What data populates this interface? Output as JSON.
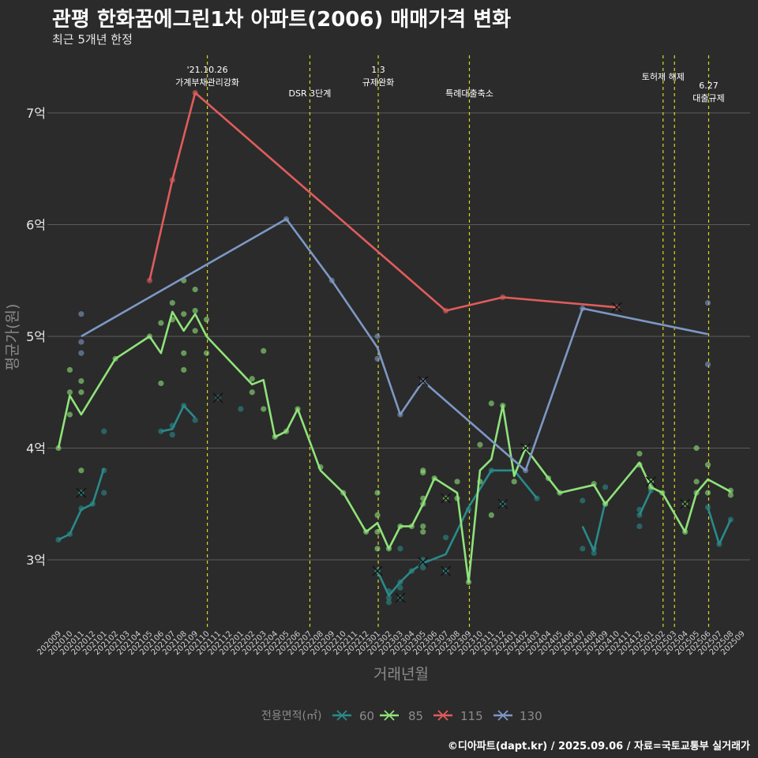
{
  "title": "관평 한화꿈에그린1차 아파트(2006) 매매가격 변화",
  "subtitle": "최근 5개년 한정",
  "caption": "©디아파트(dapt.kr) / 2025.09.06 / 자료=국토교통부 실거래가",
  "chart_data": {
    "type": "line",
    "xlabel": "거래년월",
    "ylabel": "평균가(원)",
    "x_range": [
      "202009",
      "202509"
    ],
    "ylim": [
      2.4,
      7.5
    ],
    "y_ticks": [
      {
        "value": 3,
        "label": "3억"
      },
      {
        "value": 4,
        "label": "4억"
      },
      {
        "value": 5,
        "label": "5억"
      },
      {
        "value": 6,
        "label": "6억"
      },
      {
        "value": 7,
        "label": "7억"
      }
    ],
    "x_ticks": [
      "202009",
      "202010",
      "202011",
      "202012",
      "202101",
      "202102",
      "202103",
      "202104",
      "202105",
      "202106",
      "202107",
      "202108",
      "202109",
      "202110",
      "202111",
      "202112",
      "202201",
      "202202",
      "202203",
      "202204",
      "202205",
      "202206",
      "202207",
      "202208",
      "202209",
      "202210",
      "202211",
      "202212",
      "202301",
      "202302",
      "202303",
      "202304",
      "202305",
      "202306",
      "202307",
      "202308",
      "202309",
      "202310",
      "202311",
      "202312",
      "202401",
      "202402",
      "202403",
      "202404",
      "202405",
      "202406",
      "202407",
      "202408",
      "202409",
      "202410",
      "202411",
      "202412",
      "202501",
      "202502",
      "202503",
      "202504",
      "202505",
      "202506",
      "202507",
      "202508",
      "202509"
    ],
    "grid": true,
    "legend": {
      "title": "전용면적(㎡)",
      "position": "bottom",
      "items": [
        {
          "label": "60",
          "color": "#2a8a8a"
        },
        {
          "label": "85",
          "color": "#8fe37a"
        },
        {
          "label": "115",
          "color": "#e05c5c"
        },
        {
          "label": "130",
          "color": "#7d98c4"
        }
      ]
    },
    "events": [
      {
        "date": "2021.10",
        "lines": [
          "'21.10.26",
          "가계부채관리강화"
        ],
        "level": 0
      },
      {
        "date": "2022.07",
        "lines": [
          "DSR 3단계"
        ],
        "level": 2
      },
      {
        "date": "2023.01",
        "lines": [
          "1.3",
          "규제완화"
        ],
        "level": 0
      },
      {
        "date": "2023.09",
        "lines": [
          "특례대출축소"
        ],
        "level": 2
      },
      {
        "date": "2025.02",
        "lines": [
          "토허제 해제"
        ],
        "level": 1
      },
      {
        "date": "2025.03",
        "lines": [],
        "level": 1
      },
      {
        "date": "2025.06",
        "lines": [
          "6.27",
          "대출규제"
        ],
        "level": 3
      }
    ],
    "series": [
      {
        "name": "60",
        "color": "#2a8a8a",
        "segments": [
          [
            [
              "2020.09",
              3.18
            ],
            [
              "2020.10",
              3.23
            ],
            [
              "2020.11",
              3.45
            ],
            [
              "2020.12",
              3.5
            ],
            [
              "2021.01",
              3.82
            ]
          ],
          [
            [
              "2021.06",
              4.15
            ],
            [
              "2021.07",
              4.17
            ],
            [
              "2021.08",
              4.38
            ],
            [
              "2021.09",
              4.27
            ]
          ],
          [
            [
              "2023.01",
              2.9
            ],
            [
              "2023.02",
              2.68
            ],
            [
              "2023.03",
              2.8
            ],
            [
              "2023.04",
              2.9
            ],
            [
              "2023.05",
              2.97
            ],
            [
              "2023.07",
              3.05
            ],
            [
              "2023.09",
              3.47
            ],
            [
              "2023.11",
              3.8
            ],
            [
              "2024.01",
              3.8
            ],
            [
              "2024.03",
              3.55
            ]
          ],
          [
            [
              "2024.07",
              3.3
            ],
            [
              "2024.08",
              3.08
            ],
            [
              "2024.09",
              3.52
            ]
          ],
          [
            [
              "2024.12",
              3.4
            ],
            [
              "2025.01",
              3.62
            ]
          ],
          [
            [
              "2025.06",
              3.47
            ],
            [
              "2025.07",
              3.14
            ],
            [
              "2025.08",
              3.36
            ]
          ]
        ],
        "points": [
          [
            "2020.09",
            3.18
          ],
          [
            "2020.10",
            3.23
          ],
          [
            "2020.11",
            3.46
          ],
          [
            "2020.11",
            3.6
          ],
          [
            "2020.12",
            3.5
          ],
          [
            "2021.01",
            3.6
          ],
          [
            "2021.01",
            3.8
          ],
          [
            "2021.01",
            4.15
          ],
          [
            "2021.06",
            4.15
          ],
          [
            "2021.07",
            4.12
          ],
          [
            "2021.07",
            4.2
          ],
          [
            "2021.08",
            4.38
          ],
          [
            "2021.09",
            4.25
          ],
          [
            "2022.01",
            4.35
          ],
          [
            "2023.01",
            2.9
          ],
          [
            "2023.02",
            2.62
          ],
          [
            "2023.02",
            2.66
          ],
          [
            "2023.02",
            2.72
          ],
          [
            "2023.03",
            2.75
          ],
          [
            "2023.03",
            2.8
          ],
          [
            "2023.03",
            3.1
          ],
          [
            "2023.04",
            2.9
          ],
          [
            "2023.05",
            2.93
          ],
          [
            "2023.05",
            3.0
          ],
          [
            "2023.07",
            3.2
          ],
          [
            "2023.07",
            2.9
          ],
          [
            "2023.09",
            3.45
          ],
          [
            "2023.11",
            3.8
          ],
          [
            "2023.12",
            3.5
          ],
          [
            "2024.03",
            3.55
          ],
          [
            "2024.07",
            3.1
          ],
          [
            "2024.07",
            3.53
          ],
          [
            "2024.08",
            3.06
          ],
          [
            "2024.08",
            3.1
          ],
          [
            "2024.09",
            3.5
          ],
          [
            "2024.09",
            3.65
          ],
          [
            "2024.12",
            3.3
          ],
          [
            "2024.12",
            3.45
          ],
          [
            "2024.12",
            3.4
          ],
          [
            "2025.01",
            3.62
          ],
          [
            "2025.01",
            3.7
          ],
          [
            "2025.06",
            3.47
          ],
          [
            "2025.07",
            3.14
          ],
          [
            "2025.08",
            3.36
          ]
        ],
        "x_marks": [
          [
            "2020.11",
            3.6
          ],
          [
            "2021.11",
            4.45
          ],
          [
            "2023.01",
            2.9
          ],
          [
            "2023.03",
            2.66
          ],
          [
            "2023.05",
            2.98
          ],
          [
            "2023.07",
            2.9
          ],
          [
            "2023.12",
            3.5
          ]
        ]
      },
      {
        "name": "85",
        "color": "#8fe37a",
        "segments": [
          [
            [
              "2020.09",
              4.0
            ],
            [
              "2020.10",
              4.47
            ],
            [
              "2020.11",
              4.3
            ],
            [
              "2021.02",
              4.8
            ],
            [
              "2021.05",
              5.0
            ],
            [
              "2021.06",
              4.85
            ],
            [
              "2021.07",
              5.22
            ],
            [
              "2021.08",
              5.05
            ],
            [
              "2021.09",
              5.2
            ],
            [
              "2021.10",
              5.0
            ],
            [
              "2022.02",
              4.57
            ],
            [
              "2022.03",
              4.61
            ],
            [
              "2022.04",
              4.1
            ],
            [
              "2022.05",
              4.15
            ],
            [
              "2022.06",
              4.35
            ],
            [
              "2022.08",
              3.8
            ],
            [
              "2022.10",
              3.6
            ],
            [
              "2022.12",
              3.25
            ],
            [
              "2023.01",
              3.33
            ],
            [
              "2023.02",
              3.1
            ],
            [
              "2023.03",
              3.3
            ],
            [
              "2023.04",
              3.3
            ],
            [
              "2023.05",
              3.5
            ],
            [
              "2023.06",
              3.73
            ],
            [
              "2023.08",
              3.6
            ],
            [
              "2023.09",
              2.8
            ],
            [
              "2023.10",
              3.8
            ],
            [
              "2023.11",
              3.9
            ],
            [
              "2023.12",
              4.38
            ],
            [
              "2024.01",
              3.75
            ],
            [
              "2024.02",
              4.0
            ],
            [
              "2024.04",
              3.73
            ],
            [
              "2024.05",
              3.6
            ],
            [
              "2024.08",
              3.67
            ],
            [
              "2024.09",
              3.5
            ],
            [
              "2024.12",
              3.87
            ],
            [
              "2025.01",
              3.65
            ],
            [
              "2025.02",
              3.6
            ],
            [
              "2025.04",
              3.25
            ],
            [
              "2025.05",
              3.6
            ],
            [
              "2025.06",
              3.72
            ],
            [
              "2025.08",
              3.61
            ]
          ]
        ],
        "points": [
          [
            "2020.09",
            4.0
          ],
          [
            "2020.10",
            4.7
          ],
          [
            "2020.10",
            4.5
          ],
          [
            "2020.10",
            4.3
          ],
          [
            "2020.11",
            4.6
          ],
          [
            "2020.11",
            4.5
          ],
          [
            "2020.11",
            3.8
          ],
          [
            "2021.02",
            4.8
          ],
          [
            "2021.05",
            5.0
          ],
          [
            "2021.06",
            4.58
          ],
          [
            "2021.06",
            5.12
          ],
          [
            "2021.07",
            5.3
          ],
          [
            "2021.07",
            5.15
          ],
          [
            "2021.08",
            5.5
          ],
          [
            "2021.08",
            5.2
          ],
          [
            "2021.08",
            4.85
          ],
          [
            "2021.08",
            4.7
          ],
          [
            "2021.09",
            5.42
          ],
          [
            "2021.09",
            5.23
          ],
          [
            "2021.09",
            5.05
          ],
          [
            "2021.10",
            5.15
          ],
          [
            "2021.10",
            4.85
          ],
          [
            "2022.02",
            4.62
          ],
          [
            "2022.02",
            4.5
          ],
          [
            "2022.03",
            4.87
          ],
          [
            "2022.03",
            4.35
          ],
          [
            "2022.04",
            4.1
          ],
          [
            "2022.05",
            4.15
          ],
          [
            "2022.06",
            4.35
          ],
          [
            "2022.08",
            3.83
          ],
          [
            "2022.10",
            3.6
          ],
          [
            "2022.12",
            3.25
          ],
          [
            "2023.01",
            3.6
          ],
          [
            "2023.01",
            3.4
          ],
          [
            "2023.01",
            3.25
          ],
          [
            "2023.01",
            3.1
          ],
          [
            "2023.02",
            3.1
          ],
          [
            "2023.03",
            3.3
          ],
          [
            "2023.04",
            3.3
          ],
          [
            "2023.05",
            3.8
          ],
          [
            "2023.05",
            3.78
          ],
          [
            "2023.05",
            3.55
          ],
          [
            "2023.05",
            3.5
          ],
          [
            "2023.05",
            3.3
          ],
          [
            "2023.05",
            3.25
          ],
          [
            "2023.06",
            3.73
          ],
          [
            "2023.08",
            3.7
          ],
          [
            "2023.08",
            3.55
          ],
          [
            "2023.09",
            2.8
          ],
          [
            "2023.10",
            4.03
          ],
          [
            "2023.10",
            3.7
          ],
          [
            "2023.11",
            4.4
          ],
          [
            "2023.11",
            3.4
          ],
          [
            "2023.12",
            4.38
          ],
          [
            "2024.01",
            3.7
          ],
          [
            "2024.02",
            4.0
          ],
          [
            "2024.04",
            3.73
          ],
          [
            "2024.05",
            3.6
          ],
          [
            "2024.08",
            3.68
          ],
          [
            "2024.09",
            3.5
          ],
          [
            "2024.12",
            3.95
          ],
          [
            "2024.12",
            3.85
          ],
          [
            "2025.01",
            3.65
          ],
          [
            "2025.02",
            3.6
          ],
          [
            "2025.04",
            3.25
          ],
          [
            "2025.05",
            4.0
          ],
          [
            "2025.05",
            3.7
          ],
          [
            "2025.05",
            3.6
          ],
          [
            "2025.06",
            3.85
          ],
          [
            "2025.06",
            3.6
          ],
          [
            "2025.08",
            3.62
          ],
          [
            "2025.08",
            3.58
          ]
        ],
        "x_marks": [
          [
            "2024.02",
            4.0
          ],
          [
            "2023.07",
            3.55
          ],
          [
            "2025.01",
            3.7
          ],
          [
            "2025.04",
            3.5
          ]
        ]
      },
      {
        "name": "115",
        "color": "#e05c5c",
        "segments": [
          [
            [
              "2021.05",
              5.5
            ],
            [
              "2021.07",
              6.4
            ],
            [
              "2021.09",
              7.18
            ],
            [
              "2023.07",
              5.23
            ],
            [
              "2023.12",
              5.35
            ],
            [
              "2024.10",
              5.26
            ]
          ]
        ],
        "points": [
          [
            "2021.05",
            5.5
          ],
          [
            "2021.07",
            6.4
          ],
          [
            "2021.09",
            7.18
          ],
          [
            "2023.07",
            5.23
          ],
          [
            "2023.12",
            5.35
          ]
        ],
        "x_marks": [
          [
            "2024.10",
            5.26
          ]
        ]
      },
      {
        "name": "130",
        "color": "#7d98c4",
        "segments": [
          [
            [
              "2020.11",
              5.0
            ],
            [
              "2022.05",
              6.05
            ],
            [
              "2022.09",
              5.5
            ],
            [
              "2023.01",
              4.9
            ],
            [
              "2023.03",
              4.3
            ],
            [
              "2023.05",
              4.6
            ],
            [
              "2024.02",
              3.8
            ],
            [
              "2024.07",
              5.25
            ],
            [
              "2025.06",
              5.02
            ]
          ]
        ],
        "points": [
          [
            "2020.11",
            5.2
          ],
          [
            "2020.11",
            4.95
          ],
          [
            "2020.11",
            4.85
          ],
          [
            "2022.05",
            6.05
          ],
          [
            "2022.09",
            5.5
          ],
          [
            "2023.01",
            5.0
          ],
          [
            "2023.01",
            4.8
          ],
          [
            "2023.03",
            4.3
          ],
          [
            "2024.02",
            3.8
          ],
          [
            "2024.07",
            5.25
          ],
          [
            "2025.06",
            5.3
          ],
          [
            "2025.06",
            4.75
          ]
        ],
        "x_marks": [
          [
            "2023.05",
            4.6
          ]
        ]
      }
    ]
  }
}
